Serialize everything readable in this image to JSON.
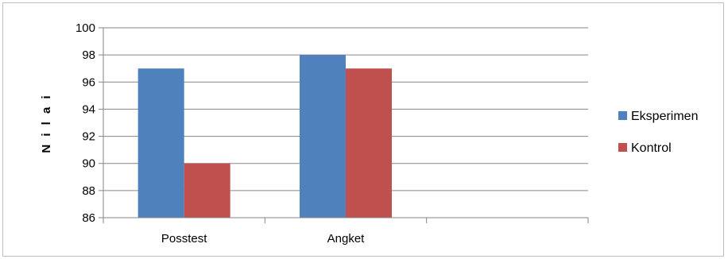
{
  "chart_data": {
    "type": "bar",
    "categories": [
      "Posstest",
      "Angket",
      ""
    ],
    "series": [
      {
        "name": "Eksperimen",
        "values": [
          97,
          98,
          null
        ],
        "color": "#4F81BD"
      },
      {
        "name": "Kontrol",
        "values": [
          90,
          97,
          null
        ],
        "color": "#C0504D"
      }
    ],
    "ylabel": "N i l a i",
    "xlabel": "",
    "title": "",
    "ylim": [
      86,
      100
    ],
    "yticks": [
      86,
      88,
      90,
      92,
      94,
      96,
      98,
      100
    ],
    "grid": true,
    "legend_position": "right",
    "gridline_color": "#868686"
  }
}
